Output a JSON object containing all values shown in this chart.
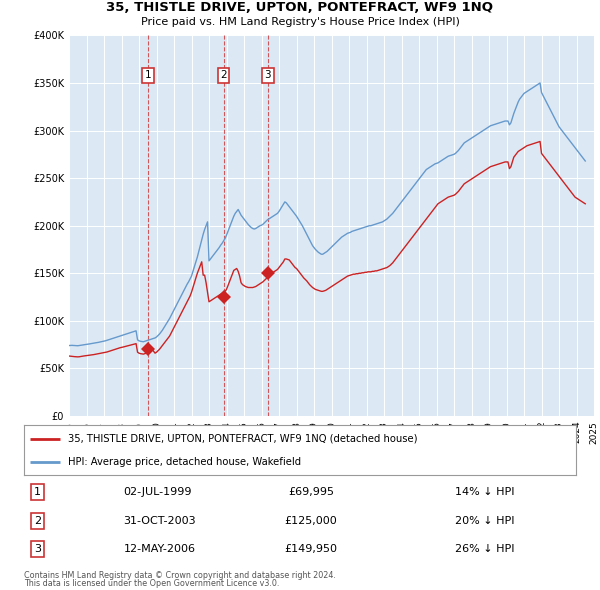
{
  "title": "35, THISTLE DRIVE, UPTON, PONTEFRACT, WF9 1NQ",
  "subtitle": "Price paid vs. HM Land Registry's House Price Index (HPI)",
  "legend_line1": "35, THISTLE DRIVE, UPTON, PONTEFRACT, WF9 1NQ (detached house)",
  "legend_line2": "HPI: Average price, detached house, Wakefield",
  "footer1": "Contains HM Land Registry data © Crown copyright and database right 2024.",
  "footer2": "This data is licensed under the Open Government Licence v3.0.",
  "table": [
    {
      "num": "1",
      "date": "02-JUL-1999",
      "price": "£69,995",
      "pct": "14% ↓ HPI"
    },
    {
      "num": "2",
      "date": "31-OCT-2003",
      "price": "£125,000",
      "pct": "20% ↓ HPI"
    },
    {
      "num": "3",
      "date": "12-MAY-2006",
      "price": "£149,950",
      "pct": "26% ↓ HPI"
    }
  ],
  "sale_dates": [
    1999.5,
    2003.833,
    2006.36
  ],
  "sale_prices": [
    69995,
    125000,
    149950
  ],
  "hpi_color": "#6699cc",
  "price_color": "#cc2222",
  "vline_color": "#cc3333",
  "bg_color": "#ffffff",
  "chart_bg": "#dce9f5",
  "grid_color": "#ffffff",
  "ylim": [
    0,
    400000
  ],
  "yticks": [
    0,
    50000,
    100000,
    150000,
    200000,
    250000,
    300000,
    350000,
    400000
  ],
  "hpi_data_years": [
    1995.0,
    1995.083,
    1995.167,
    1995.25,
    1995.333,
    1995.417,
    1995.5,
    1995.583,
    1995.667,
    1995.75,
    1995.833,
    1995.917,
    1996.0,
    1996.083,
    1996.167,
    1996.25,
    1996.333,
    1996.417,
    1996.5,
    1996.583,
    1996.667,
    1996.75,
    1996.833,
    1996.917,
    1997.0,
    1997.083,
    1997.167,
    1997.25,
    1997.333,
    1997.417,
    1997.5,
    1997.583,
    1997.667,
    1997.75,
    1997.833,
    1997.917,
    1998.0,
    1998.083,
    1998.167,
    1998.25,
    1998.333,
    1998.417,
    1998.5,
    1998.583,
    1998.667,
    1998.75,
    1998.833,
    1998.917,
    1999.0,
    1999.083,
    1999.167,
    1999.25,
    1999.333,
    1999.417,
    1999.5,
    1999.583,
    1999.667,
    1999.75,
    1999.833,
    1999.917,
    2000.0,
    2000.083,
    2000.167,
    2000.25,
    2000.333,
    2000.417,
    2000.5,
    2000.583,
    2000.667,
    2000.75,
    2000.833,
    2000.917,
    2001.0,
    2001.083,
    2001.167,
    2001.25,
    2001.333,
    2001.417,
    2001.5,
    2001.583,
    2001.667,
    2001.75,
    2001.833,
    2001.917,
    2002.0,
    2002.083,
    2002.167,
    2002.25,
    2002.333,
    2002.417,
    2002.5,
    2002.583,
    2002.667,
    2002.75,
    2002.833,
    2002.917,
    2003.0,
    2003.083,
    2003.167,
    2003.25,
    2003.333,
    2003.417,
    2003.5,
    2003.583,
    2003.667,
    2003.75,
    2003.833,
    2003.917,
    2004.0,
    2004.083,
    2004.167,
    2004.25,
    2004.333,
    2004.417,
    2004.5,
    2004.583,
    2004.667,
    2004.75,
    2004.833,
    2004.917,
    2005.0,
    2005.083,
    2005.167,
    2005.25,
    2005.333,
    2005.417,
    2005.5,
    2005.583,
    2005.667,
    2005.75,
    2005.833,
    2005.917,
    2006.0,
    2006.083,
    2006.167,
    2006.25,
    2006.333,
    2006.417,
    2006.5,
    2006.583,
    2006.667,
    2006.75,
    2006.833,
    2006.917,
    2007.0,
    2007.083,
    2007.167,
    2007.25,
    2007.333,
    2007.417,
    2007.5,
    2007.583,
    2007.667,
    2007.75,
    2007.833,
    2007.917,
    2008.0,
    2008.083,
    2008.167,
    2008.25,
    2008.333,
    2008.417,
    2008.5,
    2008.583,
    2008.667,
    2008.75,
    2008.833,
    2008.917,
    2009.0,
    2009.083,
    2009.167,
    2009.25,
    2009.333,
    2009.417,
    2009.5,
    2009.583,
    2009.667,
    2009.75,
    2009.833,
    2009.917,
    2010.0,
    2010.083,
    2010.167,
    2010.25,
    2010.333,
    2010.417,
    2010.5,
    2010.583,
    2010.667,
    2010.75,
    2010.833,
    2010.917,
    2011.0,
    2011.083,
    2011.167,
    2011.25,
    2011.333,
    2011.417,
    2011.5,
    2011.583,
    2011.667,
    2011.75,
    2011.833,
    2011.917,
    2012.0,
    2012.083,
    2012.167,
    2012.25,
    2012.333,
    2012.417,
    2012.5,
    2012.583,
    2012.667,
    2012.75,
    2012.833,
    2012.917,
    2013.0,
    2013.083,
    2013.167,
    2013.25,
    2013.333,
    2013.417,
    2013.5,
    2013.583,
    2013.667,
    2013.75,
    2013.833,
    2013.917,
    2014.0,
    2014.083,
    2014.167,
    2014.25,
    2014.333,
    2014.417,
    2014.5,
    2014.583,
    2014.667,
    2014.75,
    2014.833,
    2014.917,
    2015.0,
    2015.083,
    2015.167,
    2015.25,
    2015.333,
    2015.417,
    2015.5,
    2015.583,
    2015.667,
    2015.75,
    2015.833,
    2015.917,
    2016.0,
    2016.083,
    2016.167,
    2016.25,
    2016.333,
    2016.417,
    2016.5,
    2016.583,
    2016.667,
    2016.75,
    2016.833,
    2016.917,
    2017.0,
    2017.083,
    2017.167,
    2017.25,
    2017.333,
    2017.417,
    2017.5,
    2017.583,
    2017.667,
    2017.75,
    2017.833,
    2017.917,
    2018.0,
    2018.083,
    2018.167,
    2018.25,
    2018.333,
    2018.417,
    2018.5,
    2018.583,
    2018.667,
    2018.75,
    2018.833,
    2018.917,
    2019.0,
    2019.083,
    2019.167,
    2019.25,
    2019.333,
    2019.417,
    2019.5,
    2019.583,
    2019.667,
    2019.75,
    2019.833,
    2019.917,
    2020.0,
    2020.083,
    2020.167,
    2020.25,
    2020.333,
    2020.417,
    2020.5,
    2020.583,
    2020.667,
    2020.75,
    2020.833,
    2020.917,
    2021.0,
    2021.083,
    2021.167,
    2021.25,
    2021.333,
    2021.417,
    2021.5,
    2021.583,
    2021.667,
    2021.75,
    2021.833,
    2021.917,
    2022.0,
    2022.083,
    2022.167,
    2022.25,
    2022.333,
    2022.417,
    2022.5,
    2022.583,
    2022.667,
    2022.75,
    2022.833,
    2022.917,
    2023.0,
    2023.083,
    2023.167,
    2023.25,
    2023.333,
    2023.417,
    2023.5,
    2023.583,
    2023.667,
    2023.75,
    2023.833,
    2023.917,
    2024.0,
    2024.083,
    2024.167,
    2024.25,
    2024.333,
    2024.417,
    2024.5
  ],
  "hpi_data_values": [
    74000,
    74100,
    74200,
    74100,
    74000,
    73900,
    73800,
    74000,
    74200,
    74500,
    74800,
    75000,
    75200,
    75500,
    75700,
    76000,
    76300,
    76500,
    76800,
    77000,
    77300,
    77700,
    78000,
    78300,
    78700,
    79000,
    79500,
    80000,
    80500,
    81000,
    81500,
    82000,
    82500,
    83000,
    83500,
    84000,
    84500,
    85000,
    85500,
    86000,
    86500,
    87000,
    87500,
    88000,
    88500,
    89000,
    89500,
    80000,
    79000,
    78500,
    78200,
    78000,
    78500,
    79000,
    79500,
    80000,
    80500,
    81000,
    81500,
    82000,
    83000,
    84500,
    86000,
    88000,
    90000,
    92500,
    95000,
    97500,
    100000,
    102500,
    105500,
    108500,
    111500,
    114500,
    117500,
    120500,
    123500,
    126500,
    129500,
    132500,
    135500,
    138500,
    141000,
    144000,
    147000,
    152000,
    157000,
    162000,
    167000,
    173000,
    179000,
    185000,
    191000,
    196000,
    200000,
    204000,
    163000,
    165000,
    167000,
    169000,
    171000,
    173000,
    175000,
    177000,
    179500,
    181500,
    184000,
    186500,
    190000,
    194000,
    198000,
    202000,
    206000,
    210000,
    213000,
    215000,
    217000,
    214000,
    211000,
    209000,
    207000,
    205000,
    203000,
    201000,
    199500,
    198000,
    197000,
    196500,
    197000,
    198000,
    199000,
    200000,
    200500,
    201500,
    203000,
    204500,
    206000,
    207000,
    208000,
    209000,
    210000,
    211000,
    212000,
    213000,
    215000,
    217500,
    220000,
    222500,
    225000,
    224000,
    222000,
    220000,
    218000,
    216000,
    214000,
    212000,
    210000,
    207500,
    205000,
    202500,
    200000,
    197000,
    194000,
    191000,
    188000,
    185000,
    182000,
    179000,
    177000,
    175000,
    173500,
    172000,
    171000,
    170000,
    170000,
    171000,
    172000,
    173000,
    174500,
    176000,
    177500,
    179000,
    180500,
    182000,
    183500,
    185000,
    186500,
    188000,
    189000,
    190000,
    191000,
    192000,
    192500,
    193000,
    194000,
    194500,
    195000,
    195500,
    196000,
    196500,
    197000,
    197500,
    198000,
    198500,
    199000,
    199500,
    200000,
    200000,
    200500,
    201000,
    201500,
    202000,
    202500,
    203000,
    203500,
    204000,
    205000,
    206000,
    207000,
    208500,
    210000,
    211500,
    213000,
    215000,
    217000,
    219000,
    221000,
    223000,
    225000,
    227000,
    229000,
    231000,
    233000,
    235000,
    237000,
    239000,
    241000,
    243000,
    245000,
    247000,
    249000,
    251000,
    253000,
    255000,
    257000,
    259000,
    260000,
    261000,
    262000,
    263000,
    264000,
    265000,
    265500,
    266000,
    267000,
    268000,
    269000,
    270000,
    271000,
    272000,
    273000,
    273500,
    274000,
    274500,
    275000,
    276000,
    277500,
    279000,
    281000,
    283000,
    285000,
    287000,
    288000,
    289000,
    290000,
    291000,
    292000,
    293000,
    294000,
    295000,
    296000,
    297000,
    298000,
    299000,
    300000,
    301000,
    302000,
    303000,
    304000,
    305000,
    305500,
    306000,
    306500,
    307000,
    307500,
    308000,
    308500,
    309000,
    309500,
    310000,
    310000,
    310000,
    306000,
    308000,
    313000,
    318000,
    322000,
    326000,
    330000,
    333000,
    335000,
    337000,
    339000,
    340000,
    341000,
    342000,
    343000,
    344000,
    345000,
    346000,
    347000,
    348000,
    349000,
    350000,
    340000,
    337000,
    334000,
    331000,
    328000,
    325000,
    322000,
    319000,
    316000,
    313000,
    310000,
    307000,
    304000,
    302000,
    300000,
    298000,
    296000,
    294000,
    292000,
    290000,
    288000,
    286000,
    284000,
    282000,
    280000,
    278000,
    276000,
    274000,
    272000,
    270000,
    268000
  ],
  "price_data_years": [
    1995.0,
    1995.083,
    1995.167,
    1995.25,
    1995.333,
    1995.417,
    1995.5,
    1995.583,
    1995.667,
    1995.75,
    1995.833,
    1995.917,
    1996.0,
    1996.083,
    1996.167,
    1996.25,
    1996.333,
    1996.417,
    1996.5,
    1996.583,
    1996.667,
    1996.75,
    1996.833,
    1996.917,
    1997.0,
    1997.083,
    1997.167,
    1997.25,
    1997.333,
    1997.417,
    1997.5,
    1997.583,
    1997.667,
    1997.75,
    1997.833,
    1997.917,
    1998.0,
    1998.083,
    1998.167,
    1998.25,
    1998.333,
    1998.417,
    1998.5,
    1998.583,
    1998.667,
    1998.75,
    1998.833,
    1998.917,
    1999.0,
    1999.083,
    1999.167,
    1999.25,
    1999.333,
    1999.417,
    1999.5,
    1999.583,
    1999.667,
    1999.75,
    1999.833,
    1999.917,
    2000.0,
    2000.083,
    2000.167,
    2000.25,
    2000.333,
    2000.417,
    2000.5,
    2000.583,
    2000.667,
    2000.75,
    2000.833,
    2000.917,
    2001.0,
    2001.083,
    2001.167,
    2001.25,
    2001.333,
    2001.417,
    2001.5,
    2001.583,
    2001.667,
    2001.75,
    2001.833,
    2001.917,
    2002.0,
    2002.083,
    2002.167,
    2002.25,
    2002.333,
    2002.417,
    2002.5,
    2002.583,
    2002.667,
    2002.75,
    2002.833,
    2002.917,
    2003.0,
    2003.083,
    2003.167,
    2003.25,
    2003.333,
    2003.417,
    2003.5,
    2003.583,
    2003.667,
    2003.75,
    2003.833,
    2003.917,
    2004.0,
    2004.083,
    2004.167,
    2004.25,
    2004.333,
    2004.417,
    2004.5,
    2004.583,
    2004.667,
    2004.75,
    2004.833,
    2004.917,
    2005.0,
    2005.083,
    2005.167,
    2005.25,
    2005.333,
    2005.417,
    2005.5,
    2005.583,
    2005.667,
    2005.75,
    2005.833,
    2005.917,
    2006.0,
    2006.083,
    2006.167,
    2006.25,
    2006.333,
    2006.417,
    2006.5,
    2006.583,
    2006.667,
    2006.75,
    2006.833,
    2006.917,
    2007.0,
    2007.083,
    2007.167,
    2007.25,
    2007.333,
    2007.417,
    2007.5,
    2007.583,
    2007.667,
    2007.75,
    2007.833,
    2007.917,
    2008.0,
    2008.083,
    2008.167,
    2008.25,
    2008.333,
    2008.417,
    2008.5,
    2008.583,
    2008.667,
    2008.75,
    2008.833,
    2008.917,
    2009.0,
    2009.083,
    2009.167,
    2009.25,
    2009.333,
    2009.417,
    2009.5,
    2009.583,
    2009.667,
    2009.75,
    2009.833,
    2009.917,
    2010.0,
    2010.083,
    2010.167,
    2010.25,
    2010.333,
    2010.417,
    2010.5,
    2010.583,
    2010.667,
    2010.75,
    2010.833,
    2010.917,
    2011.0,
    2011.083,
    2011.167,
    2011.25,
    2011.333,
    2011.417,
    2011.5,
    2011.583,
    2011.667,
    2011.75,
    2011.833,
    2011.917,
    2012.0,
    2012.083,
    2012.167,
    2012.25,
    2012.333,
    2012.417,
    2012.5,
    2012.583,
    2012.667,
    2012.75,
    2012.833,
    2012.917,
    2013.0,
    2013.083,
    2013.167,
    2013.25,
    2013.333,
    2013.417,
    2013.5,
    2013.583,
    2013.667,
    2013.75,
    2013.833,
    2013.917,
    2014.0,
    2014.083,
    2014.167,
    2014.25,
    2014.333,
    2014.417,
    2014.5,
    2014.583,
    2014.667,
    2014.75,
    2014.833,
    2014.917,
    2015.0,
    2015.083,
    2015.167,
    2015.25,
    2015.333,
    2015.417,
    2015.5,
    2015.583,
    2015.667,
    2015.75,
    2015.833,
    2015.917,
    2016.0,
    2016.083,
    2016.167,
    2016.25,
    2016.333,
    2016.417,
    2016.5,
    2016.583,
    2016.667,
    2016.75,
    2016.833,
    2016.917,
    2017.0,
    2017.083,
    2017.167,
    2017.25,
    2017.333,
    2017.417,
    2017.5,
    2017.583,
    2017.667,
    2017.75,
    2017.833,
    2017.917,
    2018.0,
    2018.083,
    2018.167,
    2018.25,
    2018.333,
    2018.417,
    2018.5,
    2018.583,
    2018.667,
    2018.75,
    2018.833,
    2018.917,
    2019.0,
    2019.083,
    2019.167,
    2019.25,
    2019.333,
    2019.417,
    2019.5,
    2019.583,
    2019.667,
    2019.75,
    2019.833,
    2019.917,
    2020.0,
    2020.083,
    2020.167,
    2020.25,
    2020.333,
    2020.417,
    2020.5,
    2020.583,
    2020.667,
    2020.75,
    2020.833,
    2020.917,
    2021.0,
    2021.083,
    2021.167,
    2021.25,
    2021.333,
    2021.417,
    2021.5,
    2021.583,
    2021.667,
    2021.75,
    2021.833,
    2021.917,
    2022.0,
    2022.083,
    2022.167,
    2022.25,
    2022.333,
    2022.417,
    2022.5,
    2022.583,
    2022.667,
    2022.75,
    2022.833,
    2022.917,
    2023.0,
    2023.083,
    2023.167,
    2023.25,
    2023.333,
    2023.417,
    2023.5,
    2023.583,
    2023.667,
    2023.75,
    2023.833,
    2023.917,
    2024.0,
    2024.083,
    2024.167,
    2024.25,
    2024.333,
    2024.417,
    2024.5
  ],
  "price_data_values": [
    63000,
    62800,
    62600,
    62500,
    62300,
    62200,
    62100,
    62200,
    62500,
    62800,
    63000,
    63200,
    63300,
    63500,
    63700,
    64000,
    64300,
    64500,
    64800,
    65000,
    65300,
    65600,
    65900,
    66200,
    66500,
    66800,
    67200,
    67700,
    68200,
    68700,
    69200,
    69700,
    70200,
    70700,
    71200,
    71700,
    72000,
    72400,
    72800,
    73200,
    73600,
    74000,
    74400,
    74800,
    75200,
    75600,
    76000,
    67000,
    66000,
    65500,
    65200,
    65000,
    65500,
    66000,
    67000,
    68000,
    69000,
    70000,
    68000,
    66000,
    67000,
    68500,
    70000,
    72000,
    74000,
    76000,
    78000,
    80000,
    82000,
    84000,
    87000,
    90000,
    93000,
    96000,
    99000,
    102000,
    105000,
    108000,
    111000,
    114000,
    117000,
    120000,
    123000,
    126000,
    130000,
    135000,
    140000,
    145000,
    150000,
    154000,
    158000,
    162000,
    148000,
    148000,
    140000,
    130000,
    120000,
    121000,
    122000,
    123000,
    124000,
    125000,
    126000,
    127000,
    128000,
    129000,
    130000,
    131000,
    133000,
    137000,
    141000,
    145000,
    149000,
    153000,
    154000,
    155000,
    152000,
    147000,
    140000,
    138000,
    137000,
    136000,
    135500,
    135000,
    135000,
    135000,
    135000,
    135500,
    136000,
    137000,
    138000,
    139000,
    140000,
    141000,
    142500,
    144000,
    145500,
    147000,
    149000,
    150000,
    151000,
    152000,
    153000,
    154000,
    156000,
    158000,
    160000,
    162000,
    165000,
    165000,
    164500,
    164000,
    162000,
    160000,
    158000,
    156000,
    155000,
    153000,
    151000,
    149000,
    147000,
    145000,
    143500,
    142000,
    140000,
    138000,
    136500,
    135000,
    134000,
    133000,
    132500,
    132000,
    131500,
    131000,
    131000,
    131500,
    132000,
    133000,
    134000,
    135000,
    136000,
    137000,
    138000,
    139000,
    140000,
    141000,
    142000,
    143000,
    144000,
    145000,
    146000,
    147000,
    147500,
    148000,
    148500,
    149000,
    149000,
    149500,
    149500,
    150000,
    150000,
    150500,
    150500,
    151000,
    151000,
    151500,
    151500,
    151500,
    152000,
    152000,
    152500,
    152500,
    153000,
    153500,
    154000,
    154500,
    155000,
    155500,
    156000,
    157000,
    158000,
    159500,
    161000,
    163000,
    165000,
    167000,
    169000,
    171000,
    173000,
    175000,
    177000,
    179000,
    181000,
    183000,
    185000,
    187000,
    189000,
    191000,
    193000,
    195000,
    197000,
    199000,
    201000,
    203000,
    205000,
    207000,
    209000,
    211000,
    213000,
    215000,
    217000,
    219000,
    221000,
    223000,
    224000,
    225000,
    226000,
    227000,
    228000,
    229000,
    230000,
    230500,
    231000,
    231500,
    232000,
    233000,
    234500,
    236000,
    238000,
    240000,
    242000,
    244000,
    245000,
    246000,
    247000,
    248000,
    249000,
    250000,
    251000,
    252000,
    253000,
    254000,
    255000,
    256000,
    257000,
    258000,
    259000,
    260000,
    261000,
    262000,
    262500,
    263000,
    263500,
    264000,
    264500,
    265000,
    265500,
    266000,
    266500,
    267000,
    267000,
    267000,
    260000,
    262000,
    267000,
    272000,
    274000,
    276000,
    278000,
    279000,
    280000,
    281000,
    282000,
    283000,
    284000,
    284500,
    285000,
    285500,
    286000,
    286500,
    287000,
    287500,
    288000,
    288500,
    276000,
    274000,
    272000,
    270000,
    268000,
    266000,
    264000,
    262000,
    260000,
    258000,
    256000,
    254000,
    252000,
    250000,
    248000,
    246000,
    244000,
    242000,
    240000,
    238000,
    236000,
    234000,
    232000,
    230000,
    229000,
    228000,
    227000,
    226000,
    225000,
    224000,
    223000
  ]
}
